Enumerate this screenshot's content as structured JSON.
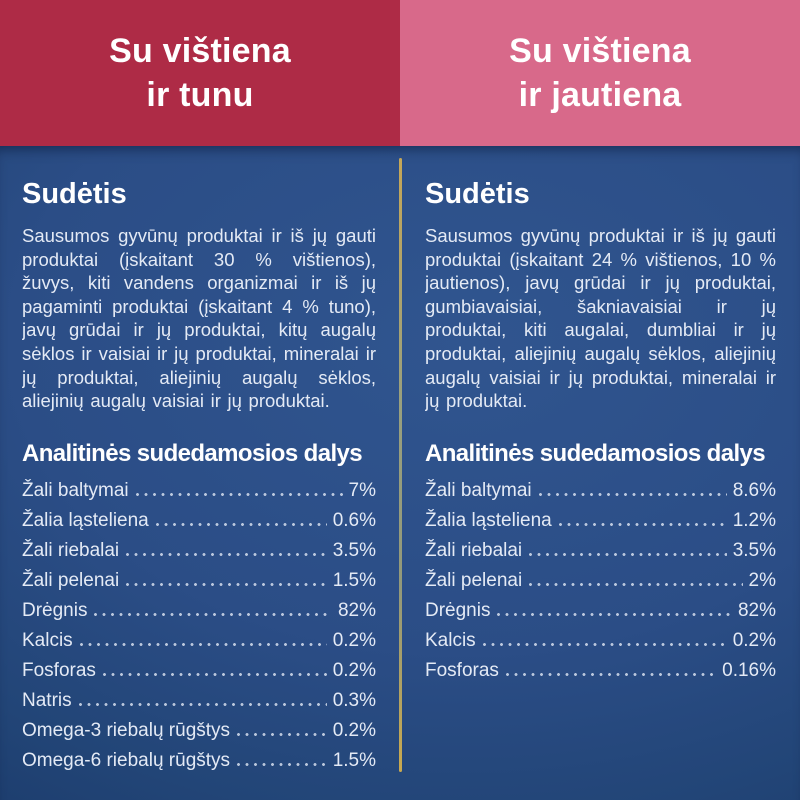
{
  "colors": {
    "header_left_bg": "#ae2b46",
    "header_right_bg": "#d8698a",
    "body_bg": "#2b4d86",
    "divider_gold": "#c6a757",
    "body_text": "#e4eaf5",
    "heading_text": "#ffffff"
  },
  "columns": [
    {
      "id": "chicken-and-tuna",
      "header": {
        "line1": "Su vištiena",
        "line2": "ir tunu"
      },
      "composition": {
        "heading": "Sudėtis",
        "text": "Sausumos gyvūnų produktai ir iš jų gauti produktai (įskaitant 30 % vištienos), žuvys, kiti vandens organizmai ir iš jų pagaminti produktai (įskaitant 4 % tuno), javų grūdai ir jų produktai, kitų augalų sėklos ir vaisiai ir jų produktai, mineralai ir jų produktai, aliejinių augalų sėklos, aliejinių augalų vaisiai ir jų produktai."
      },
      "analysis": {
        "heading": "Analitinės sudedamosios dalys",
        "rows": [
          {
            "label": "Žali baltymai",
            "value": "7%"
          },
          {
            "label": "Žalia ląsteliena",
            "value": "0.6%"
          },
          {
            "label": "Žali riebalai",
            "value": "3.5%"
          },
          {
            "label": "Žali pelenai",
            "value": "1.5%"
          },
          {
            "label": "Drėgnis",
            "value": "82%"
          },
          {
            "label": "Kalcis",
            "value": "0.2%"
          },
          {
            "label": "Fosforas",
            "value": "0.2%"
          },
          {
            "label": "Natris",
            "value": "0.3%"
          },
          {
            "label": "Omega-3 riebalų rūgštys",
            "value": "0.2%"
          },
          {
            "label": "Omega-6 riebalų rūgštys",
            "value": "1.5%"
          }
        ]
      }
    },
    {
      "id": "chicken-and-beef",
      "header": {
        "line1": "Su vištiena",
        "line2": "ir jautiena"
      },
      "composition": {
        "heading": "Sudėtis",
        "text": "Sausumos gyvūnų produktai ir iš jų gauti produktai (įskaitant 24 % vištienos, 10 % jautienos),  javų grūdai ir jų produktai, gumbiavaisiai, šakniavaisiai ir jų produktai, kiti augalai, dumbliai ir jų produktai, aliejinių augalų sėklos, aliejinių augalų vaisiai ir jų produktai, mineralai ir jų produktai."
      },
      "analysis": {
        "heading": "Analitinės sudedamosios dalys",
        "rows": [
          {
            "label": "Žali baltymai",
            "value": "8.6%"
          },
          {
            "label": "Žalia ląsteliena",
            "value": "1.2%"
          },
          {
            "label": "Žali riebalai",
            "value": "3.5%"
          },
          {
            "label": "Žali pelenai",
            "value": "2%"
          },
          {
            "label": "Drėgnis",
            "value": "82%"
          },
          {
            "label": "Kalcis",
            "value": "0.2%"
          },
          {
            "label": "Fosforas",
            "value": "0.16%"
          }
        ]
      }
    }
  ]
}
